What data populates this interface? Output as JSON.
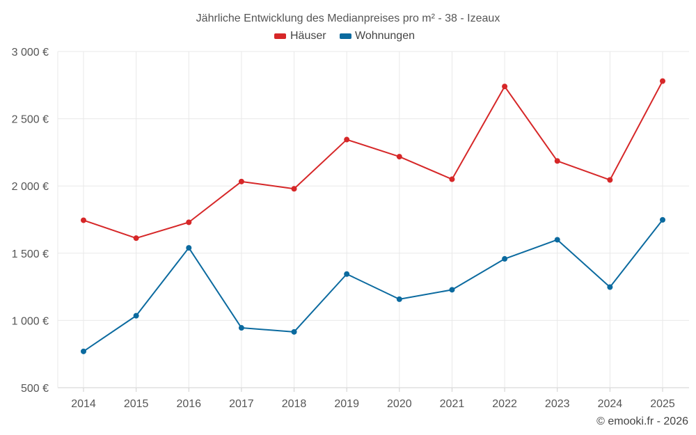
{
  "chart_data": {
    "type": "line",
    "title": "Jährliche Entwicklung des Medianpreises pro m² - 38 - Izeaux",
    "categories": [
      "2014",
      "2015",
      "2016",
      "2017",
      "2018",
      "2019",
      "2020",
      "2021",
      "2022",
      "2023",
      "2024",
      "2025"
    ],
    "series": [
      {
        "name": "Häuser",
        "color": "#d62728",
        "values": [
          1745,
          1612,
          1730,
          2033,
          1979,
          2345,
          2218,
          2050,
          2740,
          2186,
          2045,
          2780
        ]
      },
      {
        "name": "Wohnungen",
        "color": "#0b6a9f",
        "values": [
          770,
          1035,
          1540,
          945,
          915,
          1345,
          1158,
          1228,
          1458,
          1600,
          1248,
          1748
        ]
      }
    ],
    "ylim": [
      500,
      3000
    ],
    "yticks": [
      500,
      1000,
      1500,
      2000,
      2500,
      3000
    ],
    "ytick_labels": [
      "500 €",
      "1 000 €",
      "1 500 €",
      "2 000 €",
      "2 500 €",
      "3 000 €"
    ],
    "grid": true,
    "legend_position": "top-center",
    "xlabel": "",
    "ylabel": ""
  },
  "credit": "© emooki.fr - 2026"
}
